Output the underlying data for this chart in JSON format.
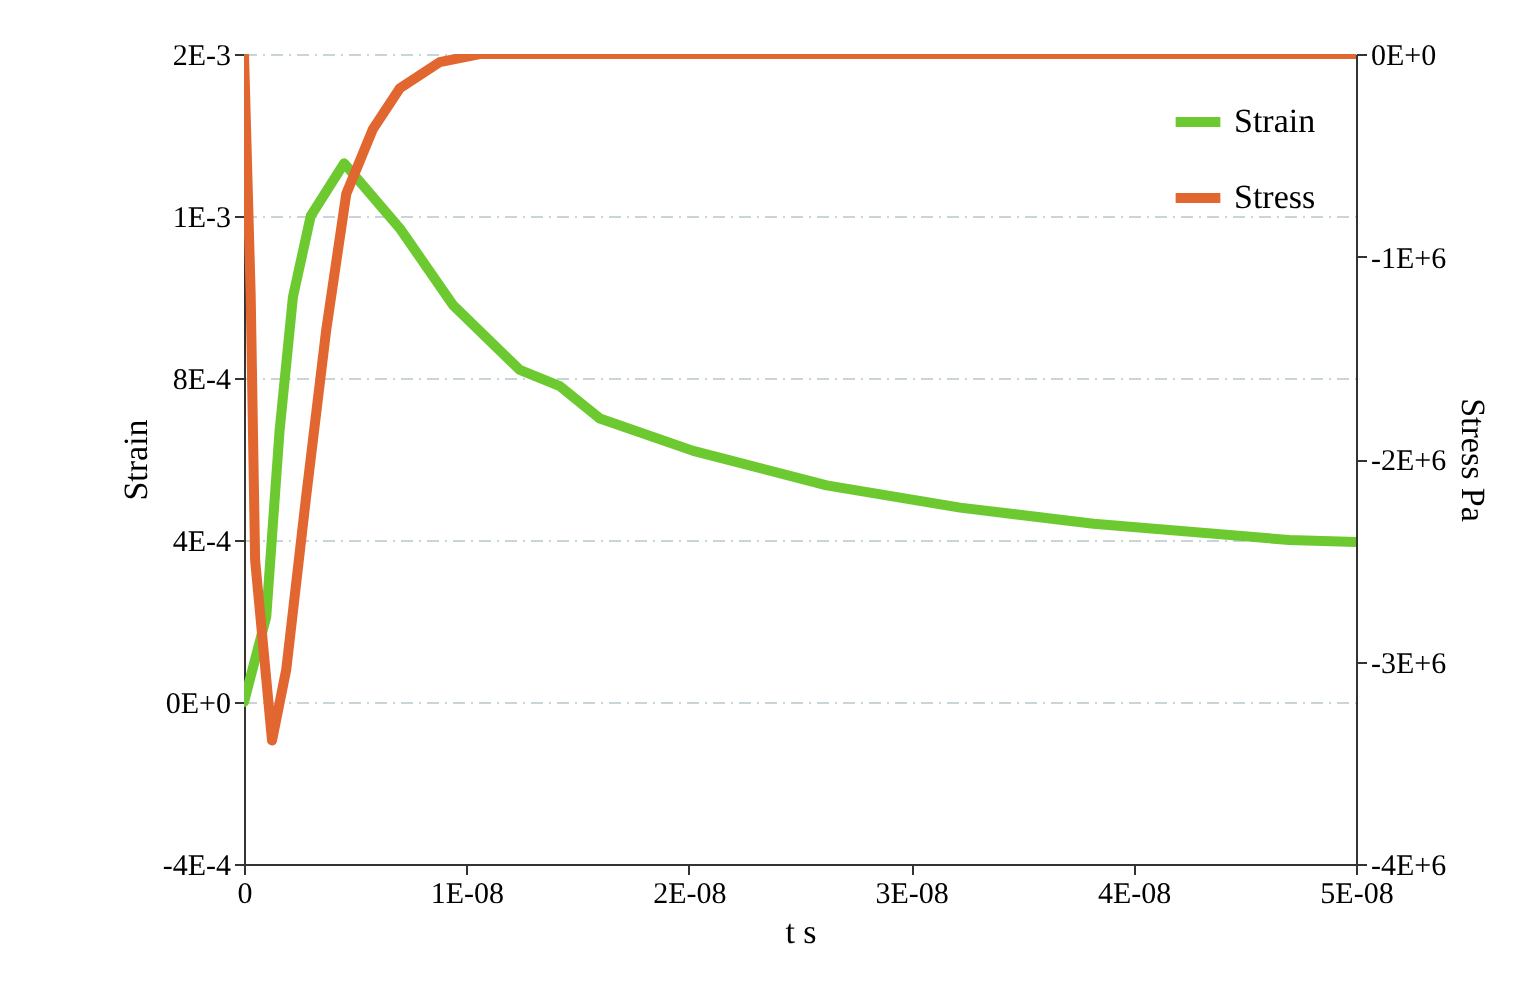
{
  "chart_data": {
    "type": "line",
    "xlabel": "t s",
    "ylabel": "Strain",
    "y2label": "Stress Pa",
    "xlim": [
      0,
      5e-08
    ],
    "xticks": [
      0,
      {
        "value": 1e-08,
        "label": "1E-08"
      },
      {
        "value": 2e-08,
        "label": "2E-08"
      },
      {
        "value": 3e-08,
        "label": "3E-08"
      },
      {
        "value": 4e-08,
        "label": "4E-08"
      },
      {
        "value": 5e-08,
        "label": "5E-08"
      }
    ],
    "ylim": [
      -0.0004,
      0.0016
    ],
    "yticks": [
      {
        "value": -0.0004,
        "label": "-4E-4"
      },
      {
        "value": 0,
        "label": "0E+0"
      },
      {
        "value": 0.0004,
        "label": "4E-4"
      },
      {
        "value": 0.0008,
        "label": "8E-4"
      },
      {
        "value": 0.0012,
        "label": "1E-3"
      },
      {
        "value": 0.0016,
        "label": "2E-3"
      }
    ],
    "y2lim": [
      -4000000,
      0
    ],
    "y2ticks": [
      {
        "value": -4000000,
        "label": "-4E+6"
      },
      {
        "value": -3000000,
        "label": "-3E+6"
      },
      {
        "value": -2000000,
        "label": "-2E+6"
      },
      {
        "value": -1000000,
        "label": "-1E+6"
      },
      {
        "value": 0,
        "label": "0E+0"
      }
    ],
    "grid": "y",
    "legend": "top right",
    "line_style": "solid",
    "series": [
      {
        "name": "Strain",
        "color": "#6dc930",
        "x": [
          0,
          1e-09,
          1.6e-09,
          2.2e-09,
          3e-09,
          4.5e-09,
          7e-09,
          9.4e-09,
          1.24e-08,
          1.42e-08,
          1.6e-08,
          2.02e-08,
          2.62e-08,
          3.22e-08,
          3.82e-08,
          4.7e-08,
          5e-08
        ],
        "values": [
          0,
          0.00021,
          0.00067,
          0.001,
          0.0012,
          0.00133,
          0.00117,
          0.00098,
          0.00082,
          0.00078,
          0.0007,
          0.00062,
          0.000535,
          0.00048,
          0.00044,
          0.0004,
          0.000395
        ]
      },
      {
        "name": "Stress",
        "color": "#e2662f",
        "axis": "y2",
        "x": [
          0,
          3e-10,
          5e-10,
          1.26e-09,
          1.9e-09,
          2.8e-09,
          3.7e-09,
          4.6e-09,
          5.8e-09,
          7e-09,
          8.8e-09,
          1.06e-08,
          5e-08
        ],
        "values": [
          0,
          -1190000,
          -2500000,
          -3390000,
          -3040000,
          -2180000,
          -1360000,
          -690000,
          -370000,
          -170000,
          -40000,
          0,
          0
        ]
      }
    ]
  }
}
